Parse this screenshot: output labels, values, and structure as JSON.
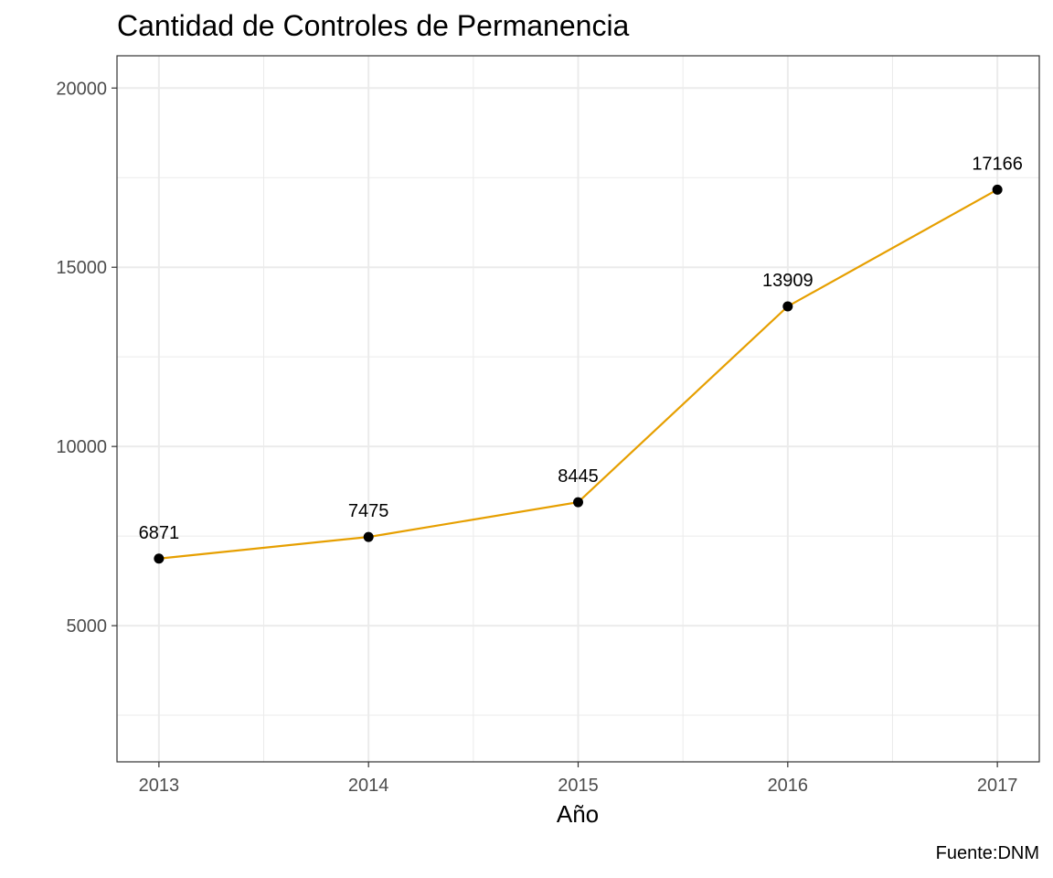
{
  "chart_data": {
    "type": "line",
    "title": "Cantidad de Controles de Permanencia",
    "xlabel": "Año",
    "ylabel": "",
    "caption": "Fuente:DNM",
    "x": [
      2013,
      2014,
      2015,
      2016,
      2017
    ],
    "x_tick_labels": [
      "2013",
      "2014",
      "2015",
      "2016",
      "2017"
    ],
    "xlim": [
      2012.8,
      2017.2
    ],
    "ylim": [
      1200,
      20900
    ],
    "y_ticks": [
      5000,
      10000,
      15000,
      20000
    ],
    "y_tick_labels": [
      "5000",
      "10000",
      "15000",
      "20000"
    ],
    "y_minor_ticks": [
      2500,
      7500,
      12500,
      17500
    ],
    "series": [
      {
        "values": [
          6871,
          7475,
          8445,
          13909,
          17166
        ],
        "labels": [
          "6871",
          "7475",
          "8445",
          "13909",
          "17166"
        ],
        "color": "#E69F00",
        "marker_color": "#000000"
      }
    ],
    "grid": true,
    "legend": "none",
    "panel_border_color": "#333333",
    "grid_color": "#ebebeb"
  }
}
